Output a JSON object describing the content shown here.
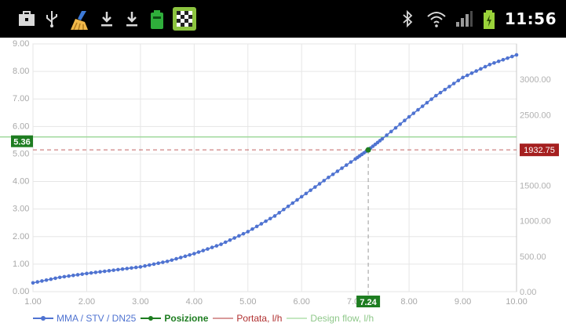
{
  "status_bar": {
    "time": "11:56",
    "left_icons": [
      "briefcase-icon",
      "usb-icon",
      "cleaner-broom-icon",
      "download-icon",
      "download-icon",
      "battery-app-icon",
      "checkered-flag-app-icon"
    ],
    "right_icons": [
      "bluetooth-icon",
      "wifi-icon",
      "signal-icon",
      "battery-icon"
    ]
  },
  "chart_data": {
    "type": "line",
    "x_ticks": [
      "1.00",
      "2.00",
      "3.00",
      "4.00",
      "5.00",
      "6.00",
      "7.00",
      "8.00",
      "9.00",
      "10.00"
    ],
    "y_left_ticks": [
      "0.00",
      "1.00",
      "2.00",
      "3.00",
      "4.00",
      "5.00",
      "6.00",
      "7.00",
      "8.00",
      "9.00"
    ],
    "y_right_ticks": [
      "0.00",
      "500.00",
      "1000.00",
      "1500.00",
      "2000.00",
      "2500.00",
      "3000.00"
    ],
    "xlim": [
      1,
      10
    ],
    "ylim_left": [
      0,
      9
    ],
    "ylim_right": [
      0,
      3500
    ],
    "grid": true,
    "series": [
      {
        "name": "MMA / STV / DN25",
        "color": "#4f73d1",
        "x": [
          1.0,
          1.5,
          2.0,
          2.5,
          3.0,
          3.5,
          4.0,
          4.5,
          5.0,
          5.5,
          6.0,
          6.5,
          7.0,
          7.24,
          7.5,
          8.0,
          8.5,
          9.0,
          9.5,
          10.0
        ],
        "y": [
          0.32,
          0.52,
          0.66,
          0.78,
          0.9,
          1.1,
          1.38,
          1.72,
          2.18,
          2.75,
          3.45,
          4.15,
          4.82,
          5.15,
          5.55,
          6.35,
          7.12,
          7.78,
          8.25,
          8.6
        ]
      }
    ],
    "position": {
      "name": "Posizione",
      "color": "#1e7d21",
      "x": 7.24,
      "y": 5.15,
      "x_label": "7.24"
    },
    "portata": {
      "name": "Portata, l/h",
      "color": "#b03030",
      "value": 1932.75,
      "label": "1932.75"
    },
    "design_flow": {
      "name": "Design flow, l/h",
      "color": "#9ed89a",
      "y_left": 5.62
    },
    "y_marker_label": "5.36",
    "legend_position": "bottom-left"
  }
}
